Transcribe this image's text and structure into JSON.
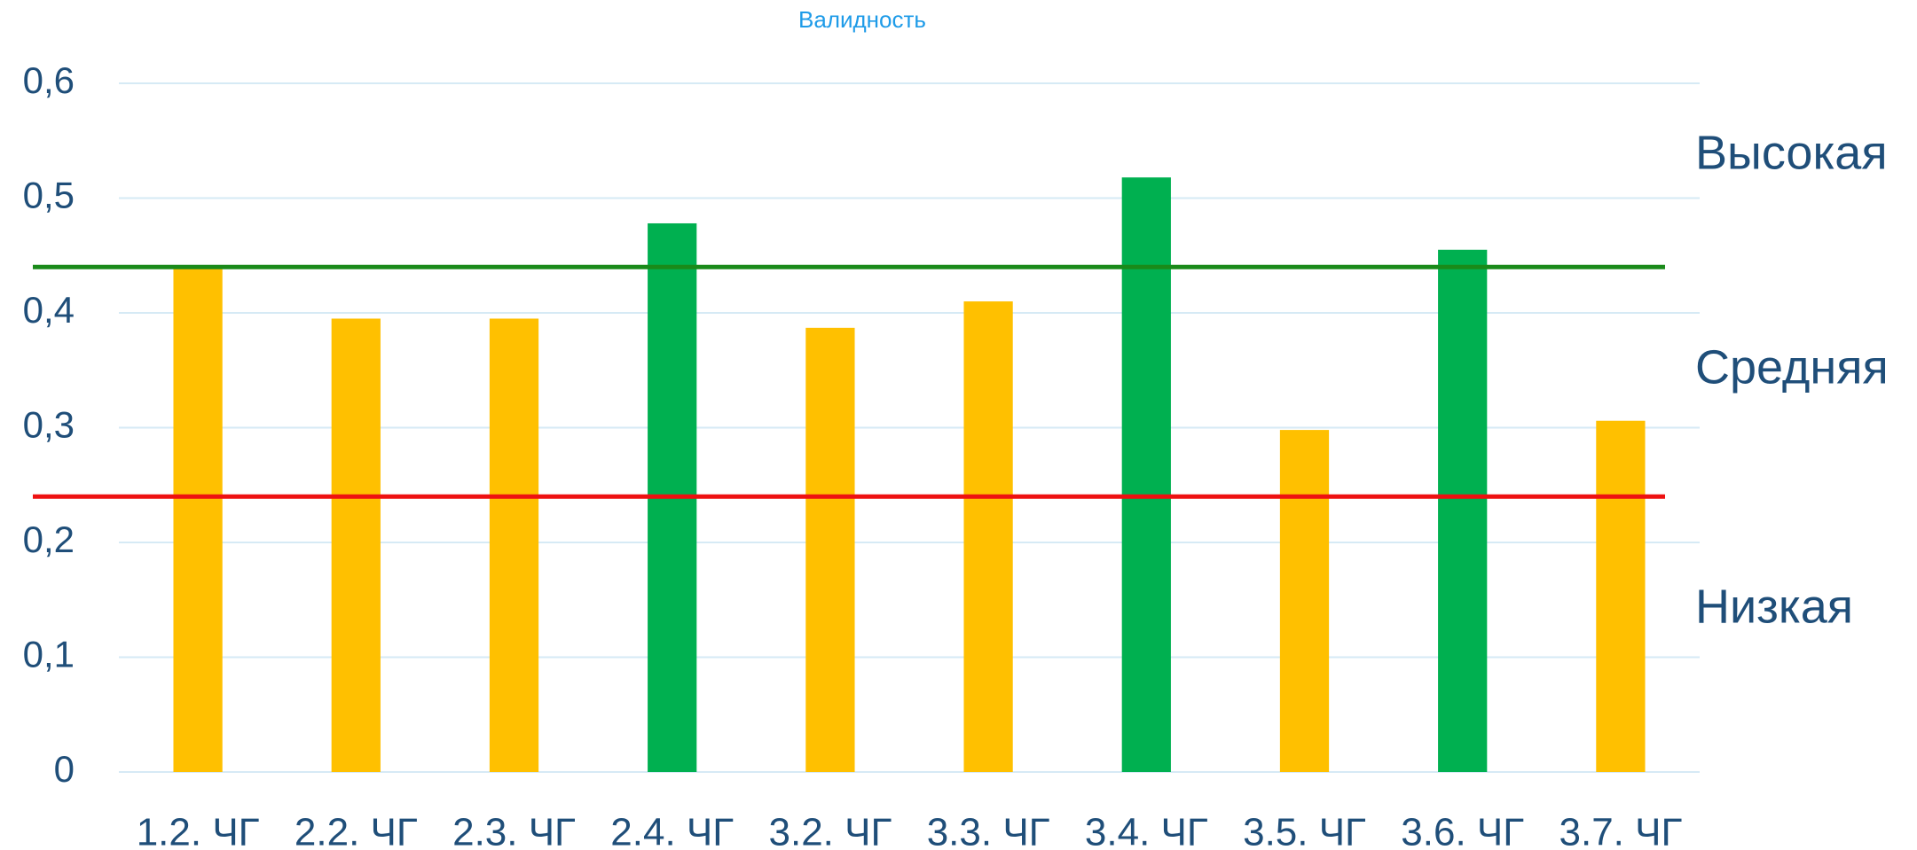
{
  "chart_data": {
    "type": "bar",
    "title": "Валидность",
    "categories": [
      "1.2. ЧГ",
      "2.2. ЧГ",
      "2.3. ЧГ",
      "2.4. ЧГ",
      "3.2. ЧГ",
      "3.3. ЧГ",
      "3.4. ЧГ",
      "3.5. ЧГ",
      "3.6. ЧГ",
      "3.7. ЧГ"
    ],
    "values": [
      0.44,
      0.395,
      0.395,
      0.478,
      0.387,
      0.41,
      0.518,
      0.298,
      0.455,
      0.306
    ],
    "colors": [
      "#ffc000",
      "#ffc000",
      "#ffc000",
      "#00b050",
      "#ffc000",
      "#ffc000",
      "#00b050",
      "#ffc000",
      "#00b050",
      "#ffc000"
    ],
    "ylim": [
      0,
      0.6
    ],
    "yticks": [
      0,
      {
        "value": 0.1,
        "label": "0,1"
      },
      {
        "value": 0.2,
        "label": "0,2"
      },
      {
        "value": 0.3,
        "label": "0,3"
      },
      {
        "value": 0.4,
        "label": "0,4"
      },
      {
        "value": 0.5,
        "label": "0,5"
      },
      {
        "value": 0.6,
        "label": "0,6"
      }
    ],
    "grid": true,
    "reference_lines": [
      {
        "value": 0.44,
        "color": "#1a8a1a"
      },
      {
        "value": 0.24,
        "color": "#ee1111"
      }
    ],
    "annotations": [
      "Высокая",
      "Средняя",
      "Низкая"
    ]
  }
}
